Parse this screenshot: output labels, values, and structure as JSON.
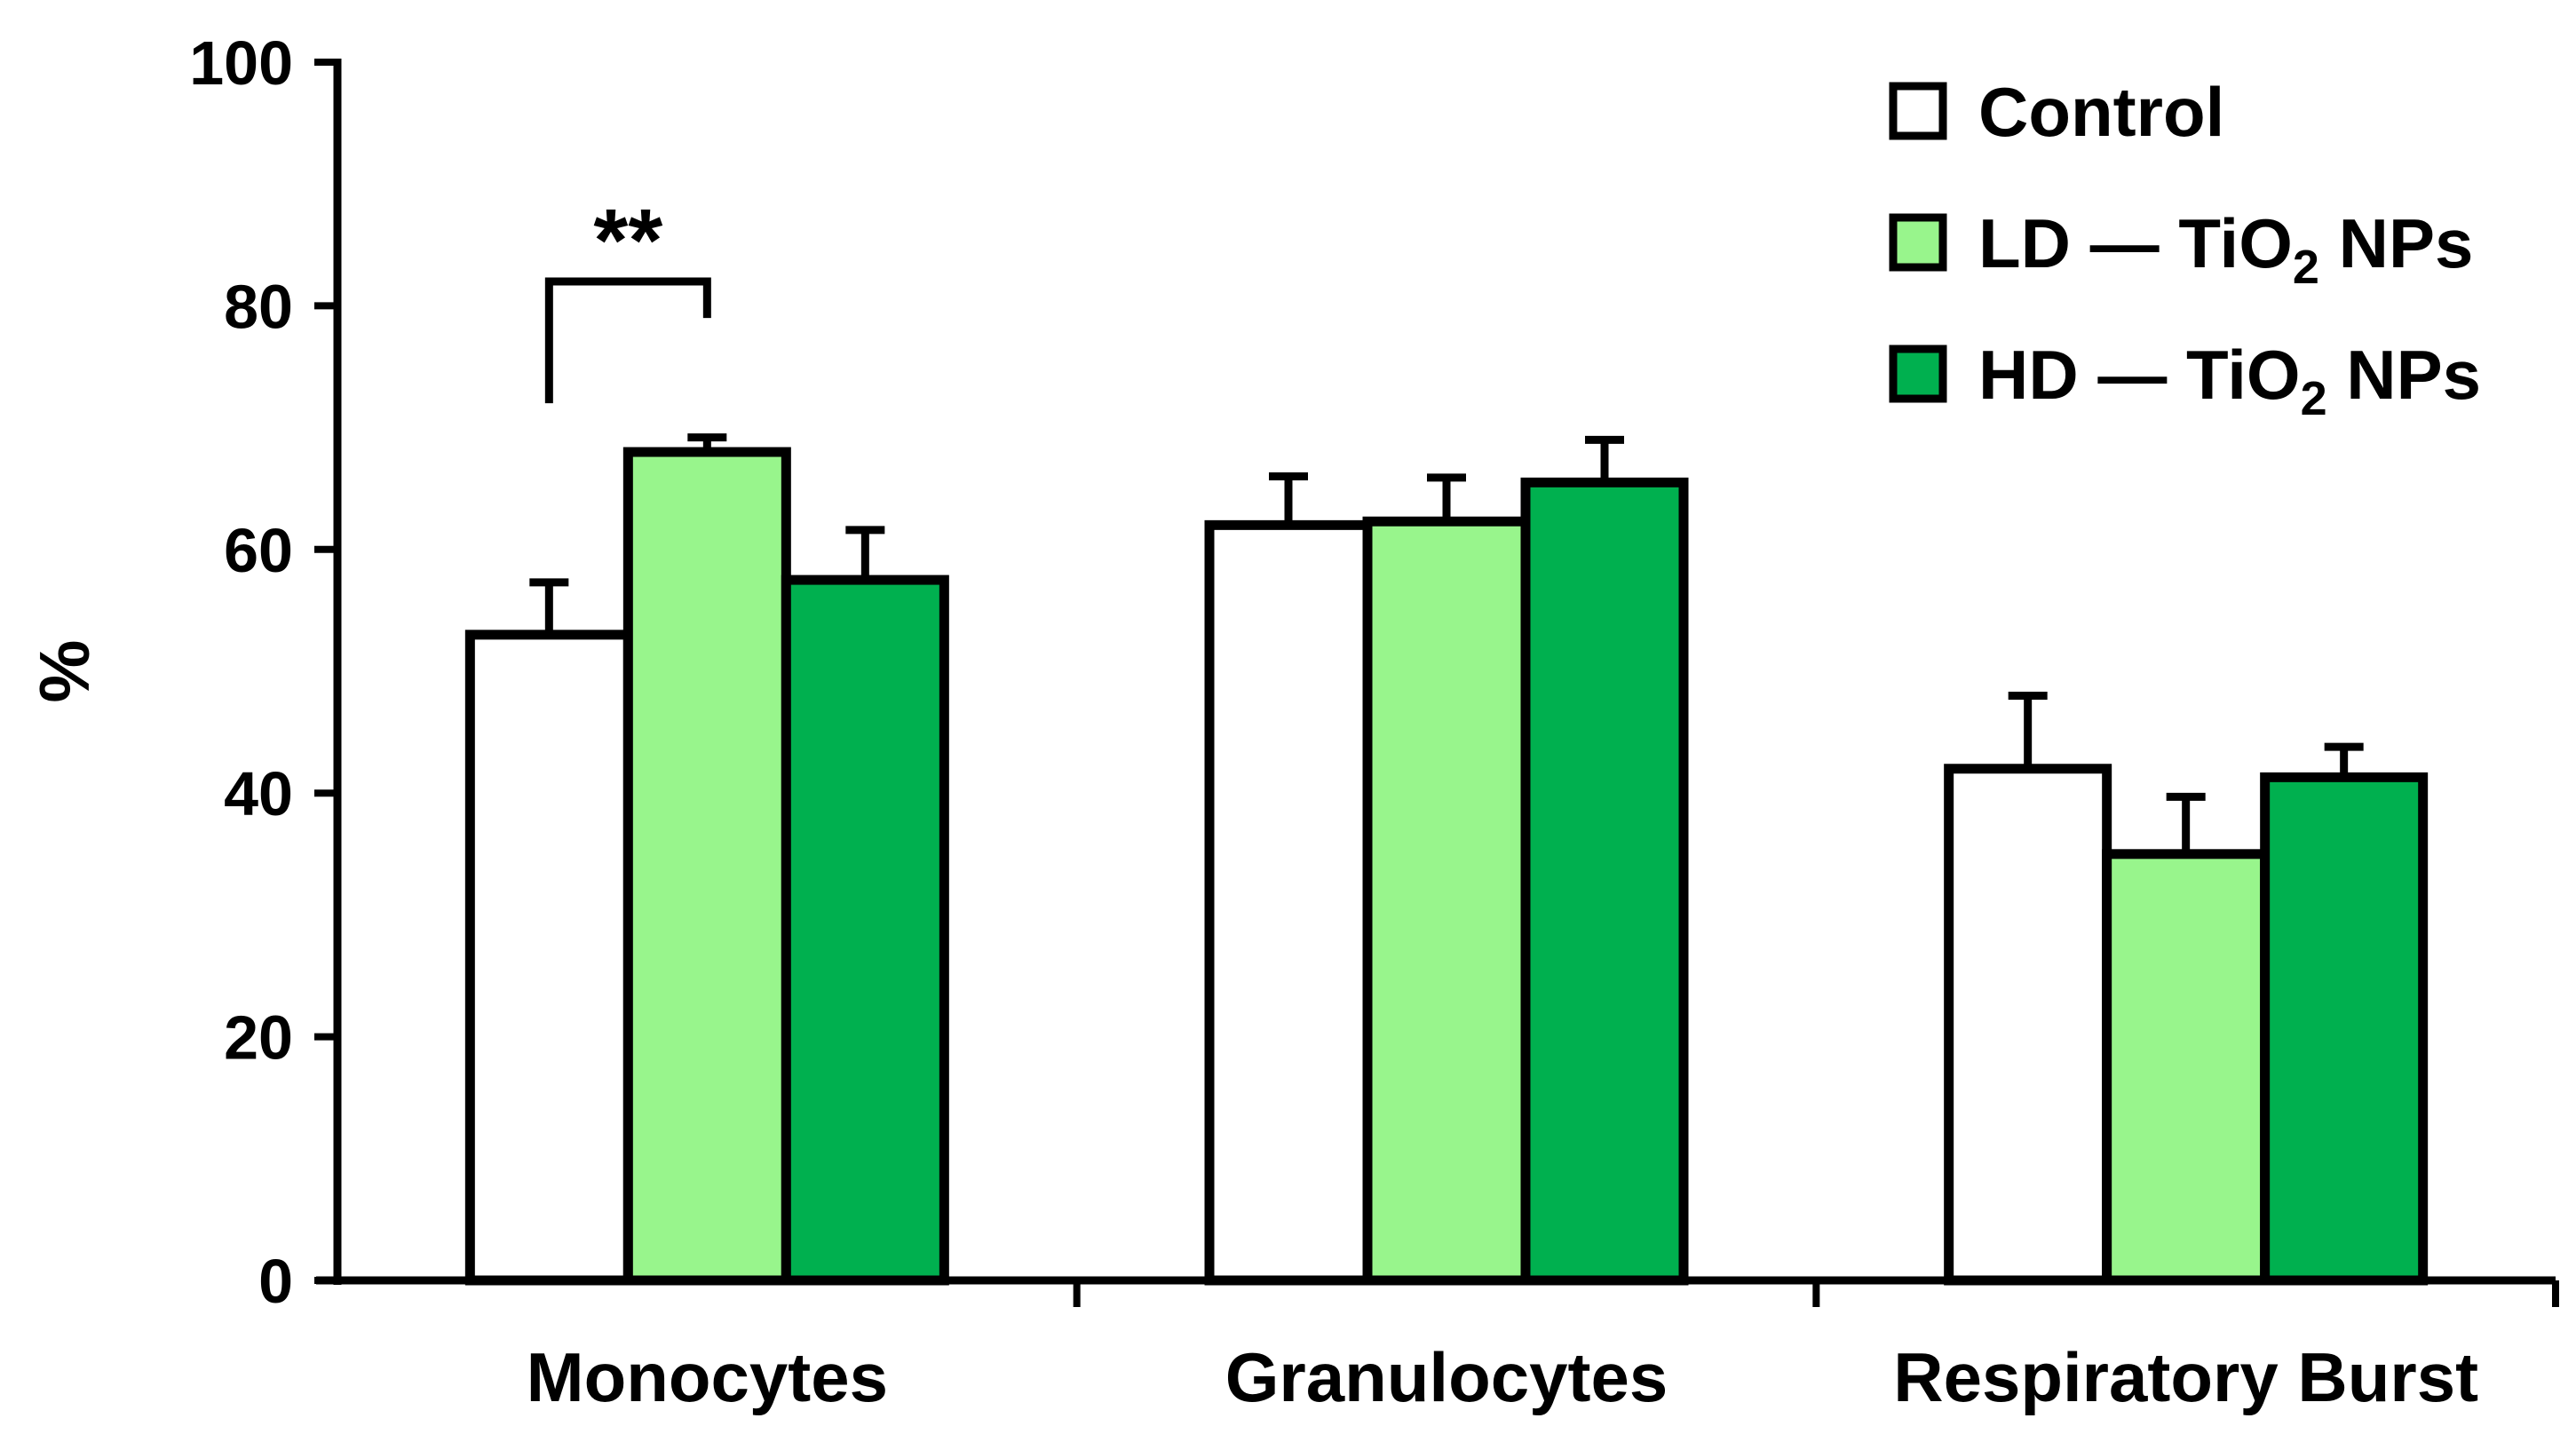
{
  "chart_data": {
    "type": "bar",
    "title": "",
    "xlabel": "",
    "ylabel": "%",
    "ylim": [
      0,
      100
    ],
    "yticks": [
      0,
      20,
      40,
      60,
      80,
      100
    ],
    "grid": false,
    "legend_position": "top-right",
    "categories": [
      "Monocytes",
      "Granulocytes",
      "Respiratory Burst"
    ],
    "series": [
      {
        "name": "Control",
        "color": "#ffffff",
        "label_parts": [
          "Control"
        ],
        "values": [
          53,
          62,
          42
        ],
        "errors": [
          4.3,
          4,
          6
        ]
      },
      {
        "name": "LD — TiO2 NPs",
        "color": "#98f58c",
        "label_parts": [
          "LD — TiO",
          "2",
          " NPs"
        ],
        "values": [
          68,
          62.3,
          35
        ],
        "errors": [
          1.2,
          3.6,
          4.7
        ]
      },
      {
        "name": "HD — TiO2 NPs",
        "color": "#00b04f",
        "label_parts": [
          "HD — TiO",
          "2",
          " NPs"
        ],
        "values": [
          57.5,
          65.5,
          41.3
        ],
        "errors": [
          4.1,
          3.5,
          2.5
        ]
      }
    ],
    "annotations": [
      {
        "text": "**",
        "category": "Monocytes",
        "between_series": [
          "Control",
          "LD — TiO2 NPs"
        ],
        "bracket_y": 82,
        "bracket_left_bottom": 72,
        "bracket_right_bottom": 79
      }
    ]
  }
}
